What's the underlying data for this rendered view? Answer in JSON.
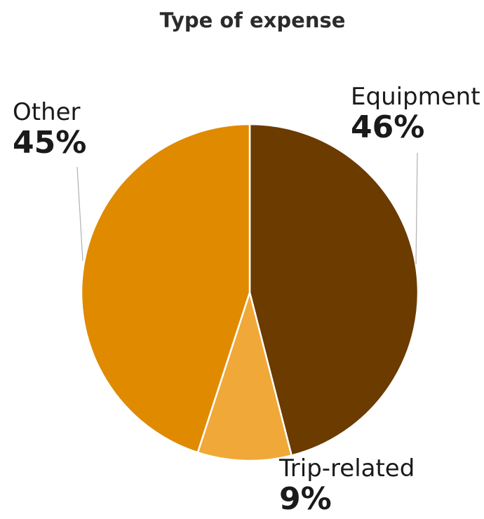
{
  "chart_data": {
    "type": "pie",
    "title": "Type of expense",
    "slices": [
      {
        "label": "Equipment",
        "value": 46,
        "value_label": "46%",
        "color": "#6b3b00"
      },
      {
        "label": "Trip-related",
        "value": 9,
        "value_label": "9%",
        "color": "#f0a838"
      },
      {
        "label": "Other",
        "value": 45,
        "value_label": "45%",
        "color": "#e08a00"
      }
    ],
    "start": "12 o'clock",
    "direction": "clockwise",
    "slice_border_color": "#ffffff",
    "leader_line_color": "#b0b0b0"
  }
}
